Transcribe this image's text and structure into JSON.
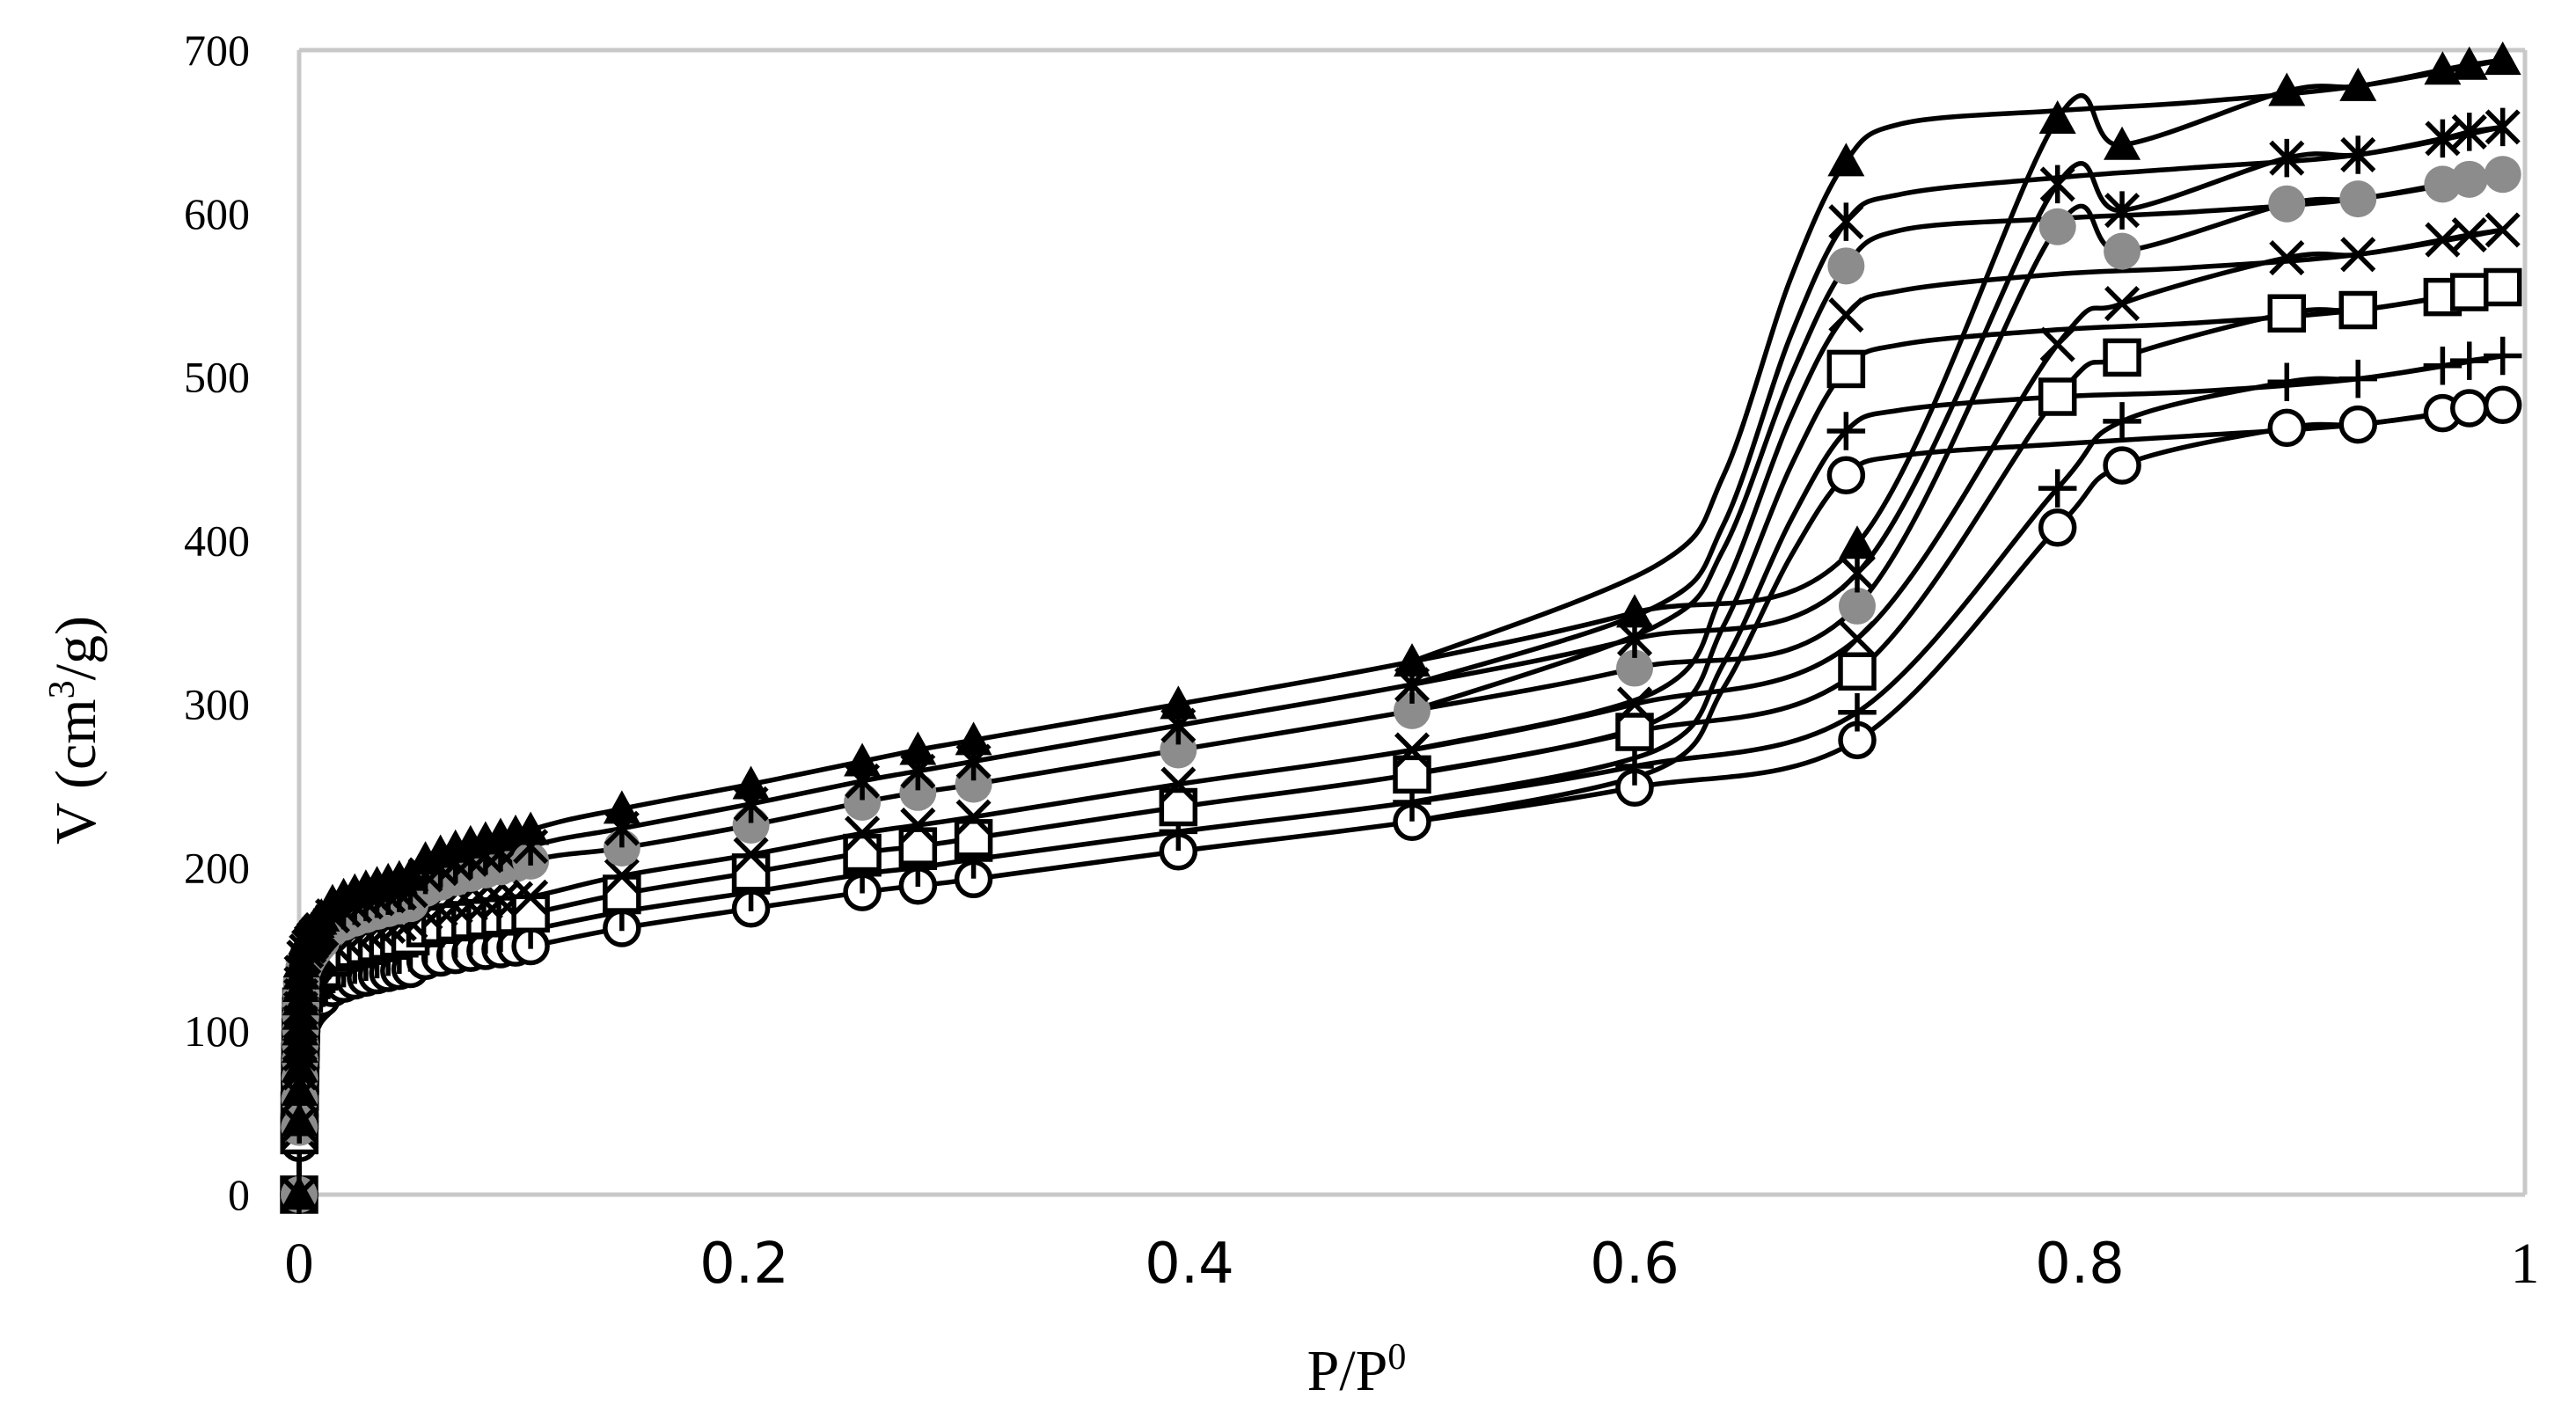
{
  "chart_data": {
    "type": "scatter",
    "title": "",
    "xlabel": "P/P",
    "xlabel_sup": "0",
    "ylabel": "V (cm",
    "ylabel_sup": "3",
    "ylabel_end": "/g)",
    "xlim": [
      0,
      1
    ],
    "ylim": [
      0,
      700
    ],
    "grid": false,
    "legend": "none",
    "x_ticks": [
      {
        "value": 0,
        "label": "0",
        "style": "serif"
      },
      {
        "value": 0.2,
        "label": "0.2",
        "style": "sans"
      },
      {
        "value": 0.4,
        "label": "0.4",
        "style": "sans"
      },
      {
        "value": 0.6,
        "label": "0.6",
        "style": "sans"
      },
      {
        "value": 0.8,
        "label": "0.8",
        "style": "sans"
      },
      {
        "value": 1,
        "label": "1",
        "style": "serif"
      }
    ],
    "y_ticks": [
      {
        "value": 0,
        "label": "0"
      },
      {
        "value": 100,
        "label": "100"
      },
      {
        "value": 200,
        "label": "200"
      },
      {
        "value": 300,
        "label": "300"
      },
      {
        "value": 400,
        "label": "400"
      },
      {
        "value": 500,
        "label": "500"
      },
      {
        "value": 600,
        "label": "600"
      },
      {
        "value": 700,
        "label": "700"
      }
    ],
    "series": [
      {
        "marker": "circle-open",
        "color": "#000000",
        "adsorption": [
          [
            0,
            0
          ],
          [
            0.001,
            100
          ],
          [
            0.01,
            120
          ],
          [
            0.05,
            138
          ],
          [
            0.104,
            152
          ],
          [
            0.145,
            163
          ],
          [
            0.203,
            175
          ],
          [
            0.253,
            185
          ],
          [
            0.278,
            189
          ],
          [
            0.303,
            193
          ],
          [
            0.395,
            210
          ],
          [
            0.5,
            228
          ],
          [
            0.6,
            249
          ],
          [
            0.7,
            278
          ],
          [
            0.79,
            408
          ],
          [
            0.819,
            446
          ],
          [
            0.893,
            469
          ],
          [
            0.925,
            471
          ],
          [
            0.963,
            478
          ],
          [
            0.975,
            481
          ],
          [
            0.99,
            483
          ]
        ],
        "desorption": [
          [
            0.99,
            483
          ],
          [
            0.925,
            471
          ],
          [
            0.85,
            464
          ],
          [
            0.79,
            459
          ],
          [
            0.72,
            452
          ],
          [
            0.695,
            440
          ],
          [
            0.67,
            390
          ],
          [
            0.64,
            310
          ],
          [
            0.61,
            260
          ],
          [
            0.5,
            228
          ]
        ]
      },
      {
        "marker": "plus",
        "color": "#000000",
        "adsorption": [
          [
            0,
            0
          ],
          [
            0.001,
            108
          ],
          [
            0.01,
            129
          ],
          [
            0.05,
            148
          ],
          [
            0.104,
            162
          ],
          [
            0.145,
            173
          ],
          [
            0.203,
            185
          ],
          [
            0.253,
            196
          ],
          [
            0.278,
            200
          ],
          [
            0.303,
            205
          ],
          [
            0.395,
            222
          ],
          [
            0.5,
            240
          ],
          [
            0.6,
            262
          ],
          [
            0.7,
            295
          ],
          [
            0.79,
            432
          ],
          [
            0.819,
            473
          ],
          [
            0.893,
            497
          ],
          [
            0.925,
            499
          ],
          [
            0.963,
            507
          ],
          [
            0.975,
            510
          ],
          [
            0.99,
            513
          ]
        ],
        "desorption": [
          [
            0.99,
            513
          ],
          [
            0.925,
            499
          ],
          [
            0.85,
            491
          ],
          [
            0.79,
            488
          ],
          [
            0.72,
            480
          ],
          [
            0.695,
            467
          ],
          [
            0.67,
            412
          ],
          [
            0.64,
            325
          ],
          [
            0.61,
            272
          ],
          [
            0.5,
            240
          ]
        ]
      },
      {
        "marker": "square-open",
        "color": "#000000",
        "adsorption": [
          [
            0,
            0
          ],
          [
            0.001,
            115
          ],
          [
            0.01,
            138
          ],
          [
            0.05,
            158
          ],
          [
            0.104,
            172
          ],
          [
            0.145,
            184
          ],
          [
            0.203,
            197
          ],
          [
            0.253,
            209
          ],
          [
            0.278,
            213
          ],
          [
            0.303,
            218
          ],
          [
            0.395,
            237
          ],
          [
            0.5,
            257
          ],
          [
            0.6,
            283
          ],
          [
            0.7,
            320
          ],
          [
            0.79,
            488
          ],
          [
            0.819,
            512
          ],
          [
            0.893,
            539
          ],
          [
            0.925,
            541
          ],
          [
            0.963,
            549
          ],
          [
            0.975,
            552
          ],
          [
            0.99,
            555
          ]
        ],
        "desorption": [
          [
            0.99,
            555
          ],
          [
            0.925,
            541
          ],
          [
            0.85,
            533
          ],
          [
            0.79,
            529
          ],
          [
            0.72,
            520
          ],
          [
            0.695,
            505
          ],
          [
            0.67,
            445
          ],
          [
            0.64,
            348
          ],
          [
            0.61,
            290
          ],
          [
            0.5,
            257
          ]
        ]
      },
      {
        "marker": "x",
        "color": "#000000",
        "adsorption": [
          [
            0,
            0
          ],
          [
            0.001,
            122
          ],
          [
            0.01,
            146
          ],
          [
            0.05,
            167
          ],
          [
            0.104,
            182
          ],
          [
            0.145,
            195
          ],
          [
            0.203,
            208
          ],
          [
            0.253,
            221
          ],
          [
            0.278,
            226
          ],
          [
            0.303,
            231
          ],
          [
            0.395,
            251
          ],
          [
            0.5,
            272
          ],
          [
            0.6,
            300
          ],
          [
            0.7,
            340
          ],
          [
            0.79,
            520
          ],
          [
            0.819,
            545
          ],
          [
            0.893,
            573
          ],
          [
            0.925,
            575
          ],
          [
            0.963,
            584
          ],
          [
            0.975,
            587
          ],
          [
            0.99,
            590
          ]
        ],
        "desorption": [
          [
            0.99,
            590
          ],
          [
            0.925,
            575
          ],
          [
            0.85,
            567
          ],
          [
            0.79,
            563
          ],
          [
            0.72,
            553
          ],
          [
            0.695,
            538
          ],
          [
            0.67,
            475
          ],
          [
            0.64,
            370
          ],
          [
            0.61,
            308
          ],
          [
            0.5,
            272
          ]
        ]
      },
      {
        "marker": "circle-gray",
        "color": "#8c8c8c",
        "adsorption": [
          [
            0,
            0
          ],
          [
            0.001,
            130
          ],
          [
            0.01,
            155
          ],
          [
            0.05,
            178
          ],
          [
            0.104,
            204
          ],
          [
            0.145,
            212
          ],
          [
            0.203,
            226
          ],
          [
            0.253,
            240
          ],
          [
            0.278,
            246
          ],
          [
            0.303,
            251
          ],
          [
            0.395,
            272
          ],
          [
            0.5,
            296
          ],
          [
            0.6,
            322
          ],
          [
            0.7,
            360
          ],
          [
            0.79,
            592
          ],
          [
            0.819,
            577
          ],
          [
            0.893,
            606
          ],
          [
            0.925,
            609
          ],
          [
            0.963,
            618
          ],
          [
            0.975,
            621
          ],
          [
            0.99,
            624
          ]
        ],
        "desorption": [
          [
            0.99,
            624
          ],
          [
            0.925,
            609
          ],
          [
            0.85,
            601
          ],
          [
            0.79,
            597
          ],
          [
            0.72,
            590
          ],
          [
            0.695,
            568
          ],
          [
            0.67,
            500
          ],
          [
            0.64,
            395
          ],
          [
            0.61,
            348
          ],
          [
            0.5,
            296
          ]
        ]
      },
      {
        "marker": "asterisk",
        "color": "#000000",
        "adsorption": [
          [
            0,
            0
          ],
          [
            0.001,
            136
          ],
          [
            0.01,
            162
          ],
          [
            0.05,
            186
          ],
          [
            0.104,
            213
          ],
          [
            0.145,
            224
          ],
          [
            0.203,
            239
          ],
          [
            0.253,
            253
          ],
          [
            0.278,
            259
          ],
          [
            0.303,
            265
          ],
          [
            0.395,
            287
          ],
          [
            0.5,
            312
          ],
          [
            0.6,
            340
          ],
          [
            0.7,
            380
          ],
          [
            0.79,
            618
          ],
          [
            0.819,
            602
          ],
          [
            0.893,
            634
          ],
          [
            0.925,
            636
          ],
          [
            0.963,
            646
          ],
          [
            0.975,
            650
          ],
          [
            0.99,
            653
          ]
        ],
        "desorption": [
          [
            0.99,
            653
          ],
          [
            0.925,
            636
          ],
          [
            0.85,
            628
          ],
          [
            0.79,
            622
          ],
          [
            0.72,
            612
          ],
          [
            0.695,
            595
          ],
          [
            0.67,
            525
          ],
          [
            0.64,
            410
          ],
          [
            0.61,
            360
          ],
          [
            0.5,
            312
          ]
        ]
      },
      {
        "marker": "triangle-filled",
        "color": "#000000",
        "adsorption": [
          [
            0,
            0
          ],
          [
            0.001,
            142
          ],
          [
            0.01,
            170
          ],
          [
            0.05,
            195
          ],
          [
            0.104,
            223
          ],
          [
            0.145,
            236
          ],
          [
            0.203,
            251
          ],
          [
            0.253,
            265
          ],
          [
            0.278,
            272
          ],
          [
            0.303,
            278
          ],
          [
            0.395,
            300
          ],
          [
            0.5,
            326
          ],
          [
            0.6,
            356
          ],
          [
            0.7,
            398
          ],
          [
            0.79,
            658
          ],
          [
            0.819,
            642
          ],
          [
            0.893,
            675
          ],
          [
            0.925,
            678
          ],
          [
            0.963,
            688
          ],
          [
            0.975,
            691
          ],
          [
            0.99,
            694
          ]
        ],
        "desorption": [
          [
            0.99,
            694
          ],
          [
            0.925,
            678
          ],
          [
            0.85,
            668
          ],
          [
            0.79,
            663
          ],
          [
            0.72,
            655
          ],
          [
            0.695,
            632
          ],
          [
            0.67,
            560
          ],
          [
            0.64,
            440
          ],
          [
            0.61,
            385
          ],
          [
            0.5,
            326
          ]
        ]
      }
    ]
  }
}
